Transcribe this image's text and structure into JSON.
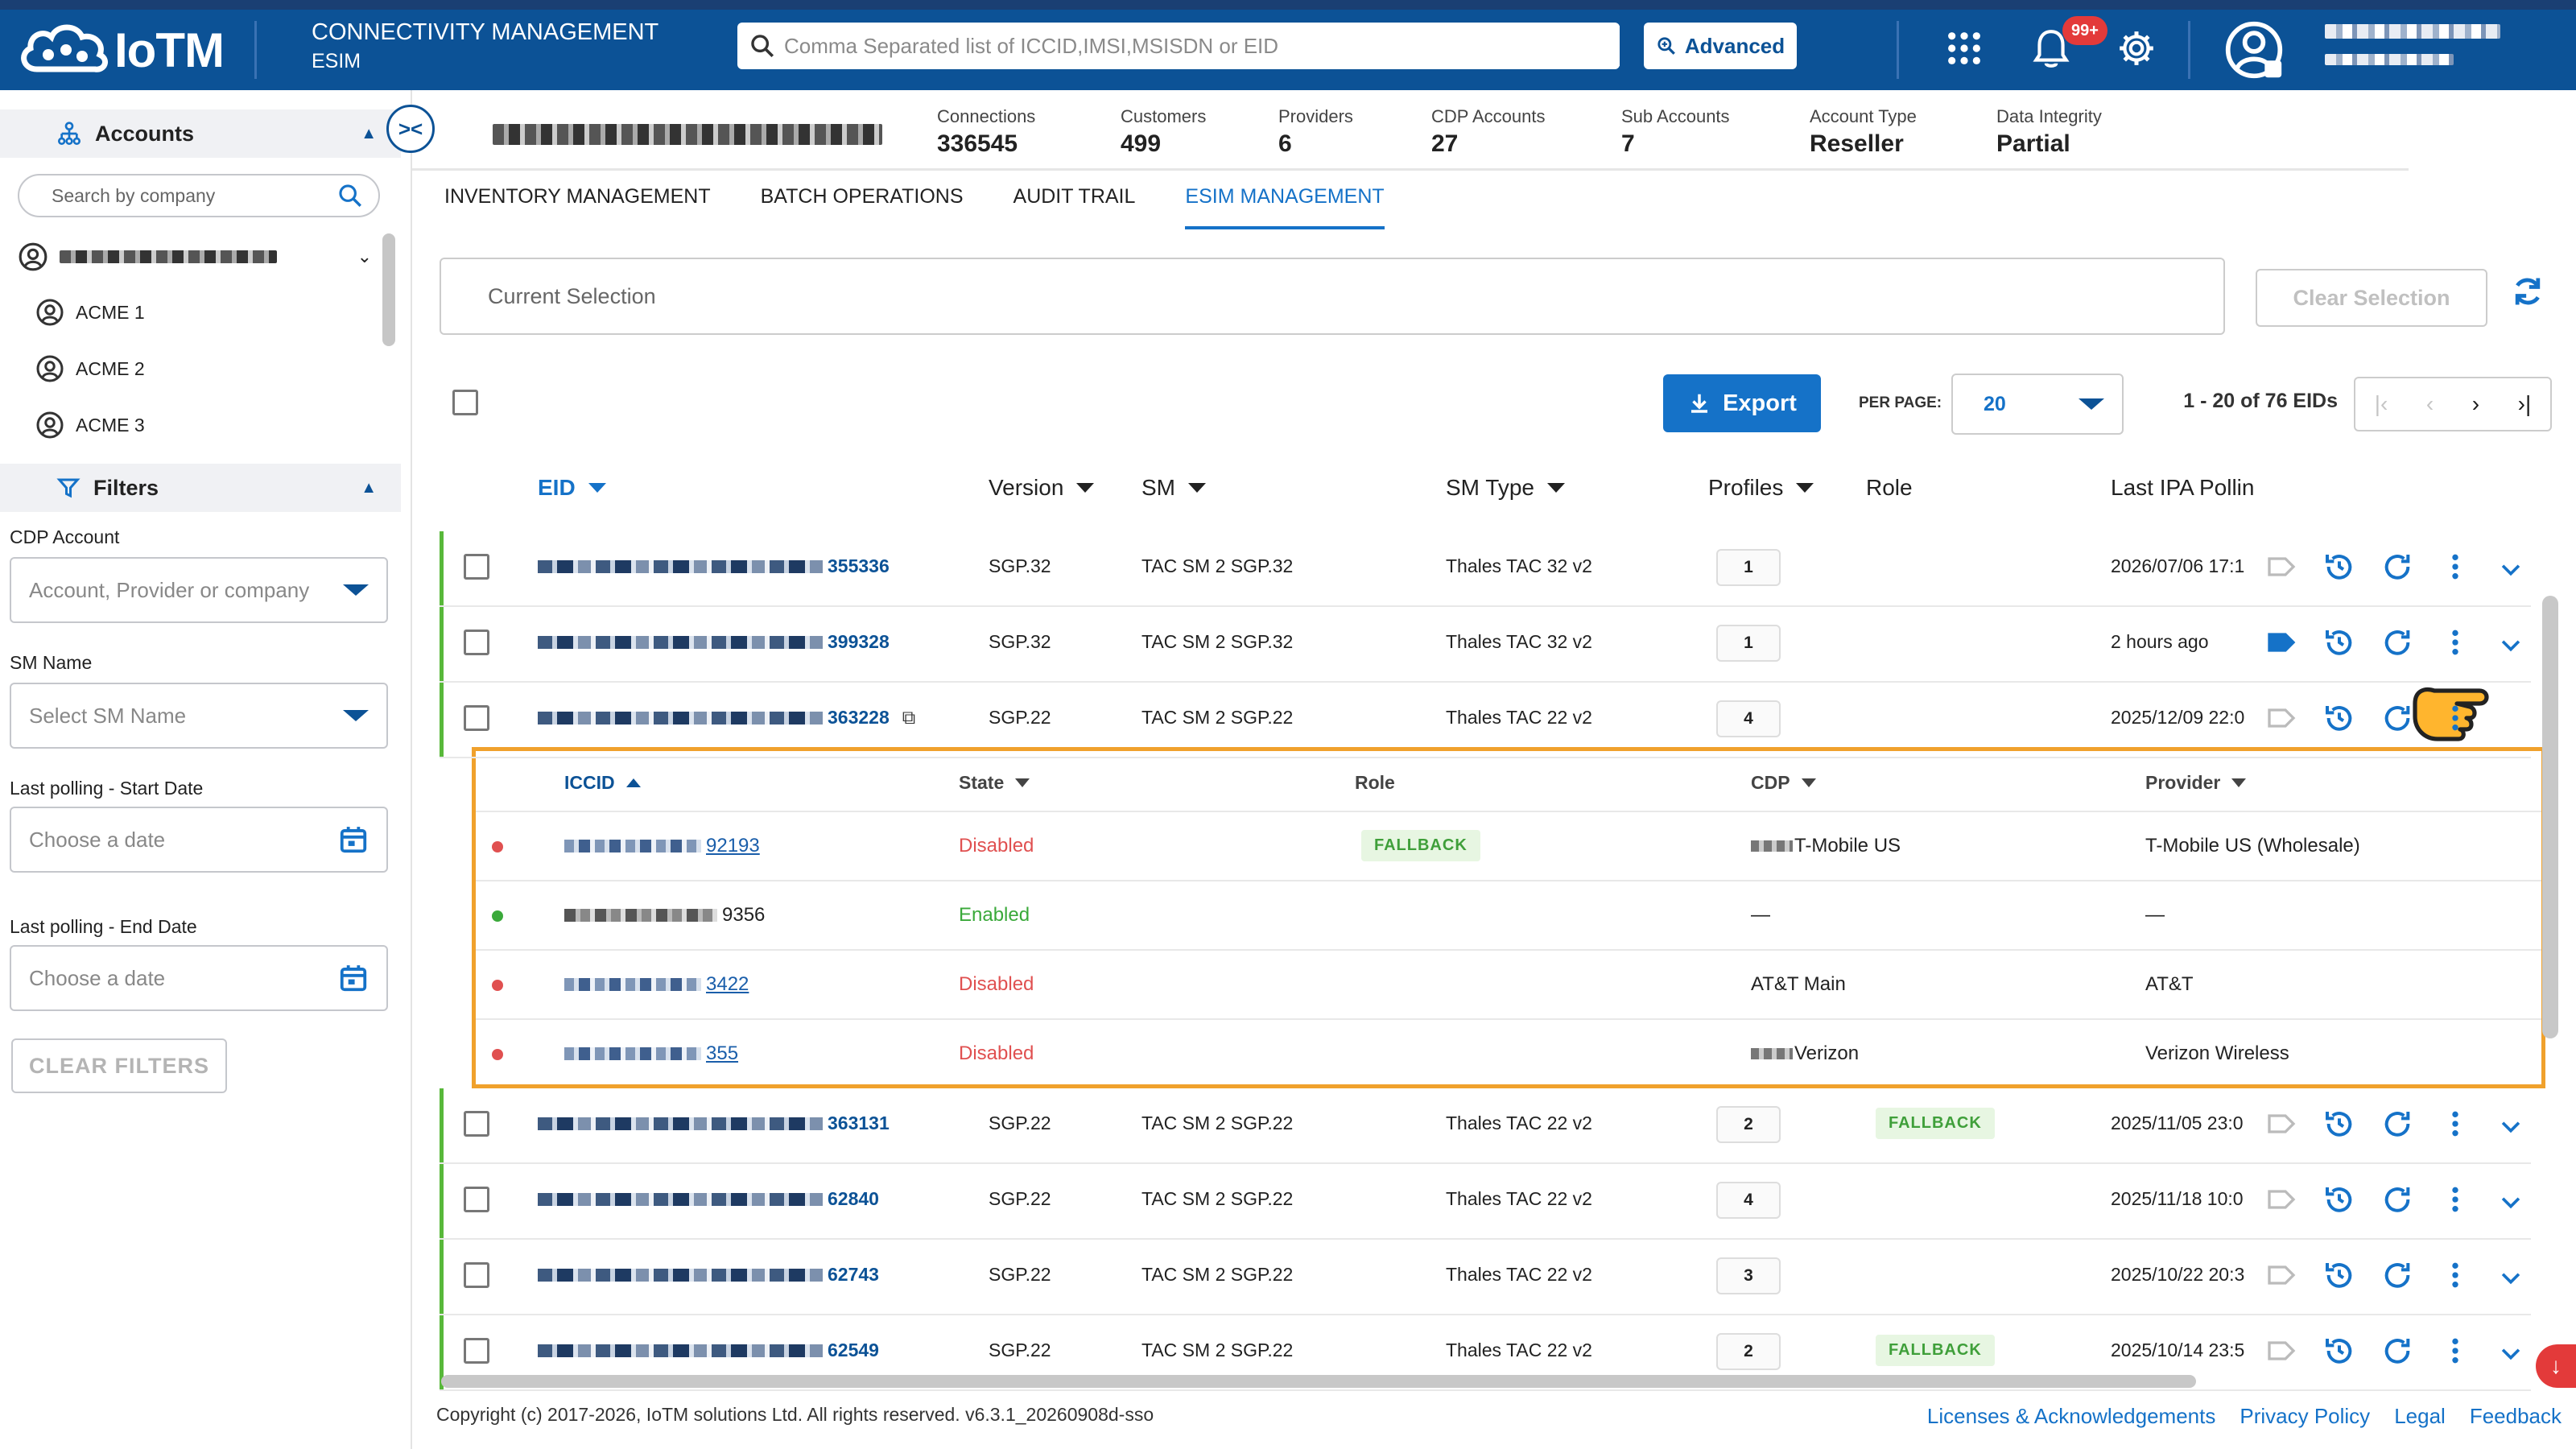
{
  "app": {
    "logo_text": "IoTM",
    "title_line1": "CONNECTIVITY MANAGEMENT",
    "title_line2": "ESIM",
    "search_placeholder": "Comma Separated list of ICCID,IMSI,MSISDN or EID",
    "advanced_label": "Advanced",
    "notification_count": "99+"
  },
  "sidebar": {
    "accounts_label": "Accounts",
    "company_search_placeholder": "Search by company",
    "accounts": [
      "ACME 1",
      "ACME 2",
      "ACME 3"
    ],
    "filters_label": "Filters",
    "filters": {
      "cdp_account_label": "CDP Account",
      "cdp_account_placeholder": "Account, Provider or company",
      "sm_name_label": "SM Name",
      "sm_name_placeholder": "Select SM Name",
      "start_date_label": "Last polling - Start Date",
      "start_date_placeholder": "Choose a date",
      "end_date_label": "Last polling - End Date",
      "end_date_placeholder": "Choose a date",
      "clear_label": "CLEAR FILTERS"
    }
  },
  "stats": [
    {
      "label": "Connections",
      "value": "336545"
    },
    {
      "label": "Customers",
      "value": "499"
    },
    {
      "label": "Providers",
      "value": "6"
    },
    {
      "label": "CDP Accounts",
      "value": "27"
    },
    {
      "label": "Sub Accounts",
      "value": "7"
    },
    {
      "label": "Account Type",
      "value": "Reseller"
    },
    {
      "label": "Data Integrity",
      "value": "Partial"
    }
  ],
  "tabs": [
    "INVENTORY MANAGEMENT",
    "BATCH OPERATIONS",
    "AUDIT TRAIL",
    "ESIM MANAGEMENT"
  ],
  "selection": {
    "current_label": "Current Selection",
    "clear_label": "Clear Selection"
  },
  "toolbar": {
    "export_label": "Export",
    "per_page_label": "PER PAGE:",
    "per_page_value": "20",
    "page_info": "1 - 20 of 76 EIDs"
  },
  "table": {
    "headers": [
      "EID",
      "Version",
      "SM",
      "SM Type",
      "Profiles",
      "Role",
      "Last IPA Pollin"
    ],
    "rows": [
      {
        "eid_suffix": "355336",
        "version": "SGP.32",
        "sm": "TAC SM 2 SGP.32",
        "sm_type": "Thales TAC 32 v2",
        "profiles": "1",
        "role": "",
        "last_poll": "2026/07/06 17:1"
      },
      {
        "eid_suffix": "399328",
        "version": "SGP.32",
        "sm": "TAC SM 2 SGP.32",
        "sm_type": "Thales TAC 32 v2",
        "profiles": "1",
        "role": "",
        "last_poll": "2 hours ago"
      },
      {
        "eid_suffix": "363228",
        "version": "SGP.22",
        "sm": "TAC SM 2 SGP.22",
        "sm_type": "Thales TAC 22 v2",
        "profiles": "4",
        "role": "",
        "last_poll": "2025/12/09 22:0"
      },
      {
        "eid_suffix": "363131",
        "version": "SGP.22",
        "sm": "TAC SM 2 SGP.22",
        "sm_type": "Thales TAC 22 v2",
        "profiles": "2",
        "role": "FALLBACK",
        "last_poll": "2025/11/05 23:0"
      },
      {
        "eid_suffix": "62840",
        "version": "SGP.22",
        "sm": "TAC SM 2 SGP.22",
        "sm_type": "Thales TAC 22 v2",
        "profiles": "4",
        "role": "",
        "last_poll": "2025/11/18 10:0"
      },
      {
        "eid_suffix": "62743",
        "version": "SGP.22",
        "sm": "TAC SM 2 SGP.22",
        "sm_type": "Thales TAC 22 v2",
        "profiles": "3",
        "role": "",
        "last_poll": "2025/10/22 20:3"
      },
      {
        "eid_suffix": "62549",
        "version": "SGP.22",
        "sm": "TAC SM 2 SGP.22",
        "sm_type": "Thales TAC 22 v2",
        "profiles": "2",
        "role": "FALLBACK",
        "last_poll": "2025/10/14 23:5"
      }
    ]
  },
  "profiles_panel": {
    "headers": [
      "ICCID",
      "State",
      "Role",
      "CDP",
      "Provider"
    ],
    "rows": [
      {
        "iccid_suffix": "92193",
        "state": "Disabled",
        "role": "FALLBACK",
        "cdp": "T-Mobile US",
        "provider": "T-Mobile US (Wholesale)"
      },
      {
        "iccid_suffix": "9356",
        "state": "Enabled",
        "role": "",
        "cdp": "—",
        "provider": "—"
      },
      {
        "iccid_suffix": "3422",
        "state": "Disabled",
        "role": "",
        "cdp": "AT&T Main",
        "provider": "AT&T"
      },
      {
        "iccid_suffix": "355",
        "state": "Disabled",
        "role": "",
        "cdp": "Verizon",
        "provider": "Verizon Wireless"
      }
    ]
  },
  "footer": {
    "copyright": "Copyright (c) 2017-2026, IoTM solutions Ltd. All rights reserved. v6.3.1_20260908d-sso",
    "links": [
      "Licenses & Acknowledgements",
      "Privacy Policy",
      "Legal",
      "Feedback"
    ]
  },
  "colors": {
    "brand": "#0c5296",
    "accent": "#1572c8",
    "enabled": "#3aa93a",
    "disabled": "#e05050",
    "highlight": "#f0a12c"
  }
}
